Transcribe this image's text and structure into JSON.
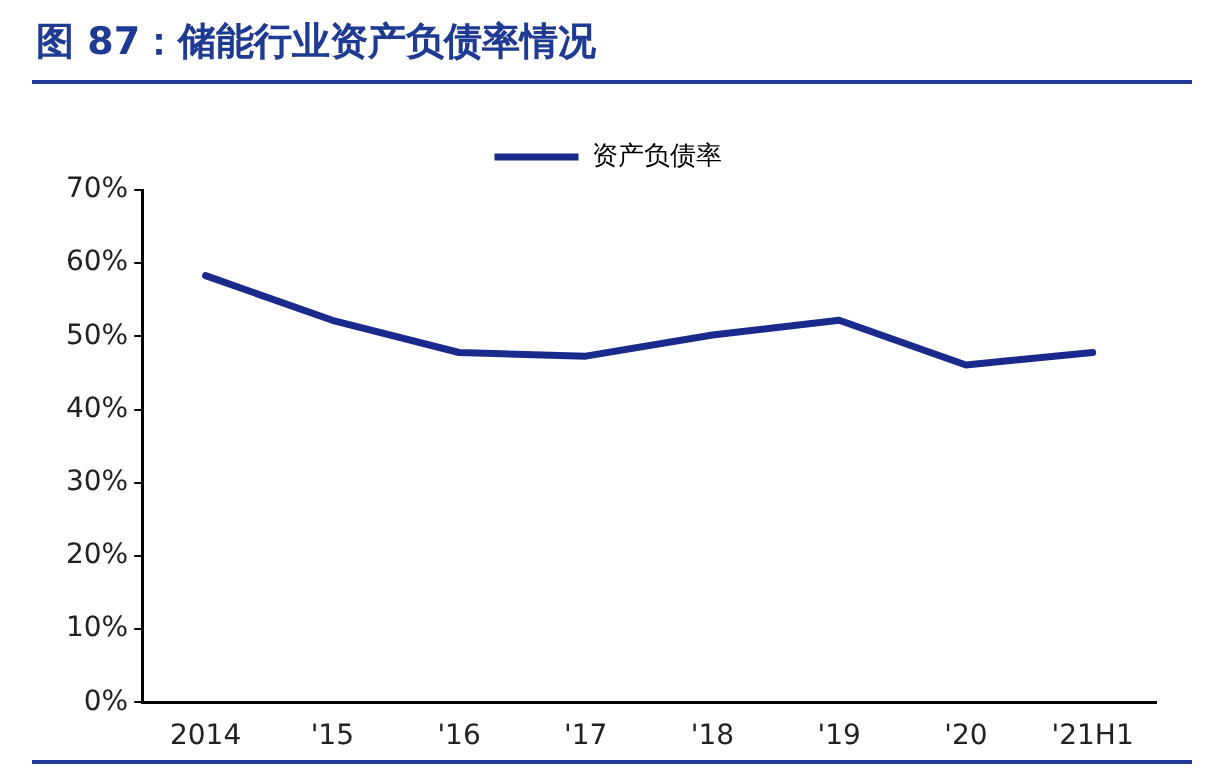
{
  "chart_data": {
    "type": "line",
    "title": "图 87：储能行业资产负债率情况",
    "categories": [
      "2014",
      "'15",
      "'16",
      "'17",
      "'18",
      "'19",
      "'20",
      "'21H1"
    ],
    "series": [
      {
        "name": "资产负债率",
        "color": "#1a2a8c",
        "values": [
          58.3,
          52.2,
          47.8,
          47.3,
          50.2,
          52.2,
          46.1,
          47.8
        ]
      }
    ],
    "ylim": [
      0,
      70
    ],
    "yticks": [
      {
        "value": 0,
        "label": "0%"
      },
      {
        "value": 10,
        "label": "10%"
      },
      {
        "value": 20,
        "label": "20%"
      },
      {
        "value": 30,
        "label": "30%"
      },
      {
        "value": 40,
        "label": "40%"
      },
      {
        "value": 50,
        "label": "50%"
      },
      {
        "value": 60,
        "label": "60%"
      },
      {
        "value": 70,
        "label": "70%"
      }
    ],
    "grid": false,
    "legend": "top",
    "marker": "none",
    "line_style": "solid"
  }
}
